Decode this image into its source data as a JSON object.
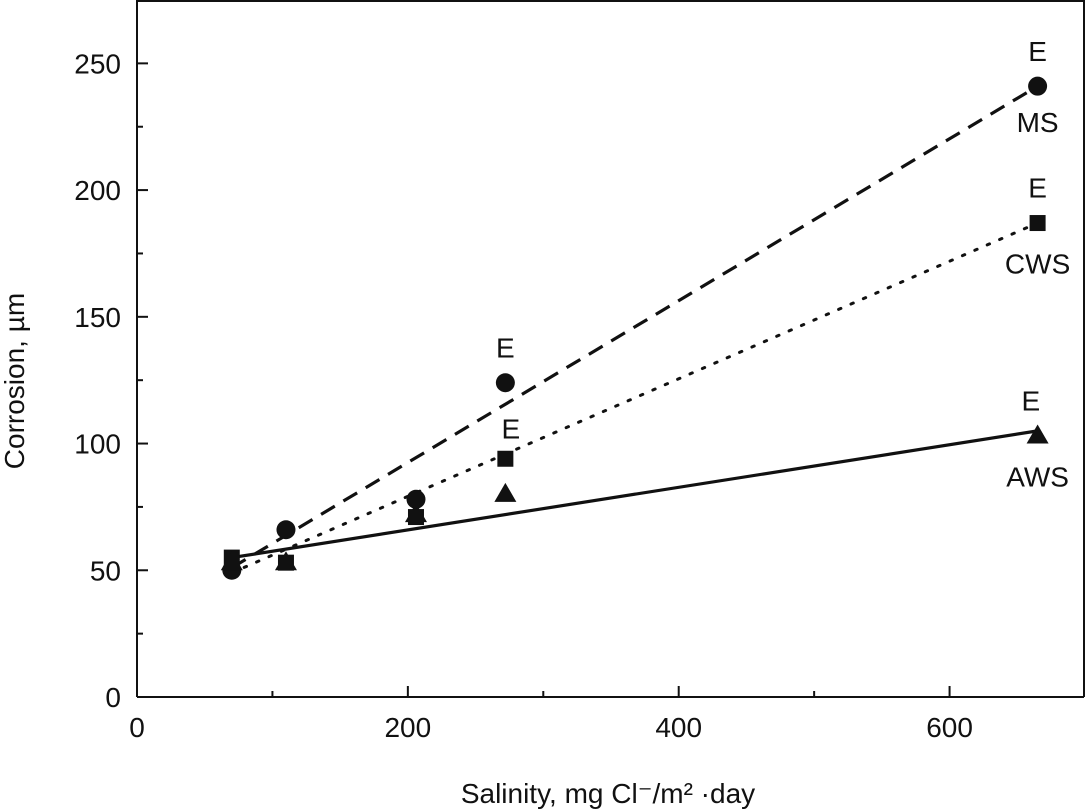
{
  "chart_data": {
    "type": "scatter",
    "title": "",
    "xlabel": "Salinity, mg Cl⁻/m² ·day",
    "ylabel": "Corrosion, µm",
    "xlim": [
      0,
      700
    ],
    "ylim": [
      0,
      275
    ],
    "x_ticks_major": [
      0,
      200,
      400,
      600
    ],
    "x_ticks_minor": [
      100,
      300,
      500,
      700
    ],
    "y_ticks_major": [
      0,
      50,
      100,
      150,
      200,
      250
    ],
    "y_ticks_minor": [
      25,
      75,
      125,
      175,
      225,
      275
    ],
    "grid": false,
    "series": [
      {
        "name": "MS",
        "marker": "circle",
        "line_style": "dashed",
        "points": [
          {
            "x": 70,
            "y": 50
          },
          {
            "x": 110,
            "y": 66
          },
          {
            "x": 206,
            "y": 78
          },
          {
            "x": 272,
            "y": 124
          },
          {
            "x": 665,
            "y": 241
          }
        ],
        "fit": [
          {
            "x": 70,
            "y": 51
          },
          {
            "x": 665,
            "y": 241
          }
        ]
      },
      {
        "name": "CWS",
        "marker": "square",
        "line_style": "dotted",
        "points": [
          {
            "x": 70,
            "y": 55
          },
          {
            "x": 110,
            "y": 53
          },
          {
            "x": 206,
            "y": 71
          },
          {
            "x": 272,
            "y": 94
          },
          {
            "x": 665,
            "y": 187
          }
        ],
        "fit": [
          {
            "x": 70,
            "y": 49
          },
          {
            "x": 665,
            "y": 187
          }
        ]
      },
      {
        "name": "AWS",
        "marker": "triangle",
        "line_style": "solid",
        "points": [
          {
            "x": 70,
            "y": 53
          },
          {
            "x": 110,
            "y": 53
          },
          {
            "x": 206,
            "y": 72
          },
          {
            "x": 272,
            "y": 80
          },
          {
            "x": 665,
            "y": 103
          }
        ],
        "fit": [
          {
            "x": 70,
            "y": 55
          },
          {
            "x": 665,
            "y": 105
          }
        ]
      }
    ],
    "annotations": [
      {
        "text": "E",
        "x": 665,
        "y": 251
      },
      {
        "text": "MS",
        "x": 665,
        "y": 223
      },
      {
        "text": "E",
        "x": 665,
        "y": 197
      },
      {
        "text": "CWS",
        "x": 665,
        "y": 167
      },
      {
        "text": "E",
        "x": 272,
        "y": 134
      },
      {
        "text": "E",
        "x": 276,
        "y": 102
      },
      {
        "text": "E",
        "x": 660,
        "y": 113
      },
      {
        "text": "AWS",
        "x": 665,
        "y": 83
      }
    ]
  }
}
